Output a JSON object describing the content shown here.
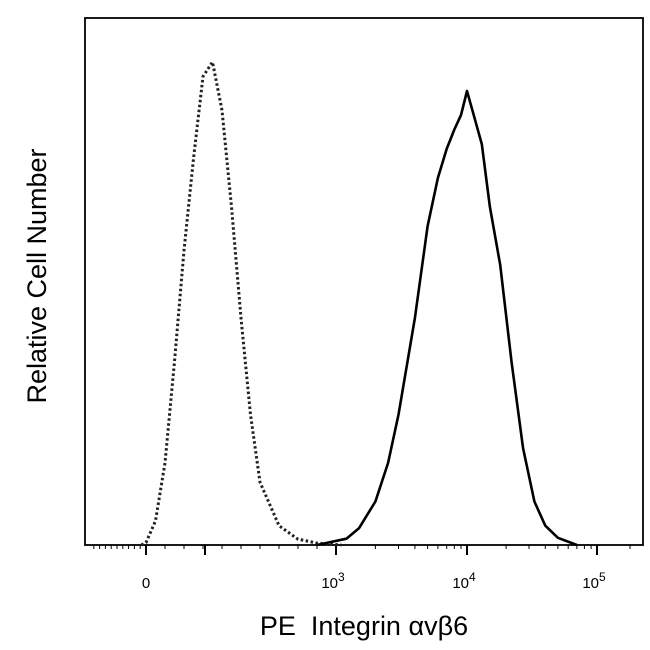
{
  "chart_data": {
    "type": "line",
    "title": "",
    "xlabel": "PE  Integrin αvβ6",
    "ylabel": "Relative Cell Number",
    "x_scale": "biexponential",
    "x_tick_labels": [
      {
        "base": "0",
        "exp": ""
      },
      {
        "base": "10",
        "exp": "3"
      },
      {
        "base": "10",
        "exp": "4"
      },
      {
        "base": "10",
        "exp": "5"
      }
    ],
    "x_tick_values": [
      0,
      1000,
      10000,
      100000
    ],
    "grid": false,
    "legend": "none",
    "series": [
      {
        "style": "dotted",
        "color": "#222222",
        "x": [
          -80,
          0,
          50,
          100,
          150,
          200,
          250,
          300,
          350,
          400,
          450,
          500,
          550,
          600,
          700,
          800,
          900,
          1100
        ],
        "y": [
          0.0,
          0.005,
          0.05,
          0.17,
          0.38,
          0.61,
          0.8,
          0.97,
          1.0,
          0.9,
          0.7,
          0.47,
          0.27,
          0.13,
          0.04,
          0.012,
          0.004,
          0.0
        ]
      },
      {
        "style": "solid",
        "color": "#000000",
        "x": [
          900,
          1200,
          1500,
          2000,
          2500,
          3000,
          4000,
          5000,
          6000,
          7000,
          8000,
          9000,
          10000,
          11000,
          13000,
          15000,
          18000,
          22000,
          27000,
          33000,
          40000,
          50000,
          70000
        ],
        "y": [
          0.0,
          0.013,
          0.035,
          0.09,
          0.17,
          0.27,
          0.47,
          0.66,
          0.76,
          0.82,
          0.86,
          0.89,
          0.94,
          0.9,
          0.83,
          0.7,
          0.58,
          0.38,
          0.2,
          0.09,
          0.04,
          0.015,
          0.0
        ]
      }
    ]
  }
}
